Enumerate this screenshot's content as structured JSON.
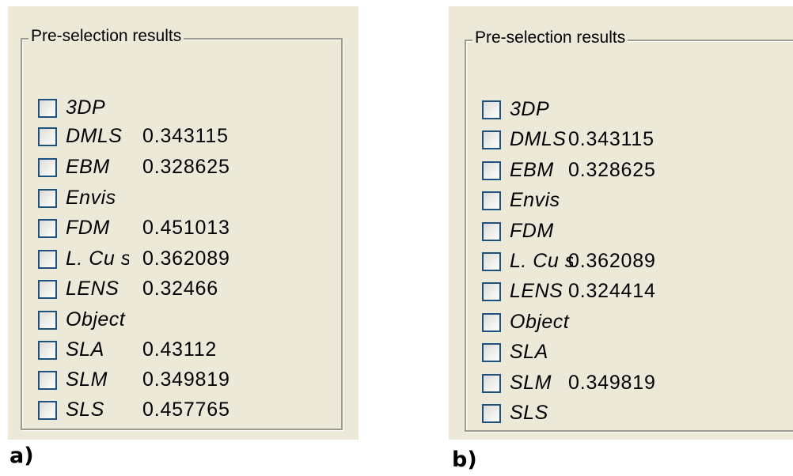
{
  "panels": [
    {
      "id": "a",
      "title": "Pre-selection results",
      "caption": "a)",
      "items": [
        {
          "name": "3DP",
          "value": "",
          "checked": false
        },
        {
          "name": "DMLS",
          "value": "0.343115",
          "checked": false
        },
        {
          "name": "EBM",
          "value": "0.328625",
          "checked": false
        },
        {
          "name": "Envis",
          "value": "",
          "checked": false
        },
        {
          "name": "FDM",
          "value": "0.451013",
          "checked": false
        },
        {
          "name": "L. Cu s",
          "value": "0.362089",
          "checked": false
        },
        {
          "name": "LENS",
          "value": "0.32466",
          "checked": false
        },
        {
          "name": "Object",
          "value": "",
          "checked": false
        },
        {
          "name": "SLA",
          "value": "0.43112",
          "checked": false
        },
        {
          "name": "SLM",
          "value": "0.349819",
          "checked": false
        },
        {
          "name": "SLS",
          "value": "0.457765",
          "checked": false
        }
      ]
    },
    {
      "id": "b",
      "title": "Pre-selection results",
      "caption": "b)",
      "items": [
        {
          "name": "3DP",
          "value": "",
          "checked": false
        },
        {
          "name": "DMLS",
          "value": "0.343115",
          "checked": false
        },
        {
          "name": "EBM",
          "value": "0.328625",
          "checked": false
        },
        {
          "name": "Envis",
          "value": "",
          "checked": false
        },
        {
          "name": "FDM",
          "value": "",
          "checked": false
        },
        {
          "name": "L. Cu s",
          "value": "0.362089",
          "checked": false
        },
        {
          "name": "LENS",
          "value": "0.324414",
          "checked": false
        },
        {
          "name": "Object",
          "value": "",
          "checked": false
        },
        {
          "name": "SLA",
          "value": "",
          "checked": false
        },
        {
          "name": "SLM",
          "value": "0.349819",
          "checked": false
        },
        {
          "name": "SLS",
          "value": "",
          "checked": false
        }
      ]
    }
  ]
}
